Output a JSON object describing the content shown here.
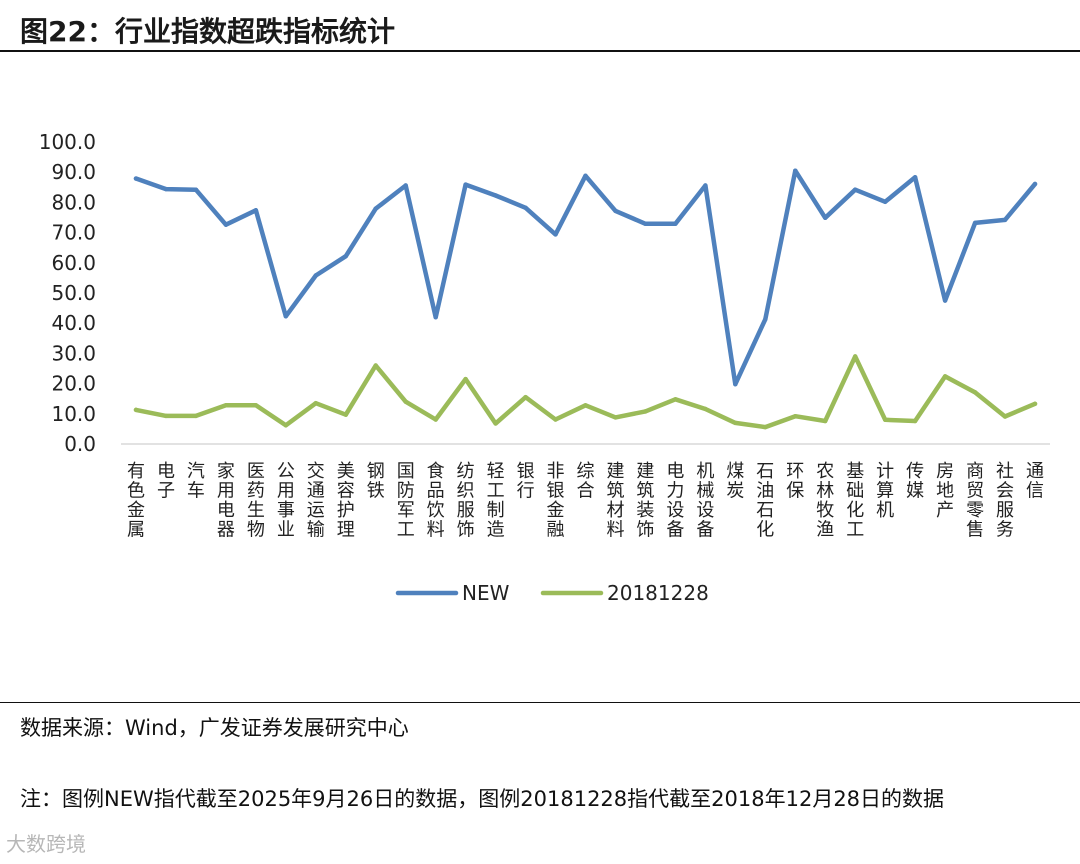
{
  "header": {
    "title": "图22：行业指数超跌指标统计"
  },
  "chart_data": {
    "type": "line",
    "title": "",
    "xlabel": "",
    "ylabel": "",
    "ylim": [
      0,
      100
    ],
    "yticks": [
      "100.0",
      "90.0",
      "80.0",
      "70.0",
      "60.0",
      "50.0",
      "40.0",
      "30.0",
      "20.0",
      "10.0",
      "0.0"
    ],
    "categories": [
      "有色金属",
      "电子",
      "汽车",
      "家用电器",
      "医药生物",
      "公用事业",
      "交通运输",
      "美容护理",
      "钢铁",
      "国防军工",
      "食品饮料",
      "纺织服饰",
      "轻工制造",
      "银行",
      "非银金融",
      "综合",
      "建筑材料",
      "建筑装饰",
      "电力设备",
      "机械设备",
      "煤炭",
      "石油石化",
      "环保",
      "农林牧渔",
      "基础化工",
      "计算机",
      "传媒",
      "房地产",
      "商贸零售",
      "社会服务",
      "通信"
    ],
    "series": [
      {
        "name": "NEW",
        "color": "#4f81bd",
        "values": [
          87.9,
          84.4,
          84.2,
          72.6,
          77.4,
          42.3,
          55.8,
          62.2,
          77.9,
          85.6,
          42.0,
          85.9,
          82.3,
          78.2,
          69.4,
          88.8,
          77.2,
          72.9,
          72.9,
          85.6,
          19.8,
          41.3,
          90.5,
          74.9,
          84.2,
          80.2,
          88.3,
          47.5,
          73.2,
          74.2,
          86.1
        ]
      },
      {
        "name": "20181228",
        "color": "#9bbb59",
        "values": [
          11.3,
          9.3,
          9.3,
          12.8,
          12.8,
          6.2,
          13.5,
          9.7,
          26.0,
          14.0,
          8.1,
          21.5,
          6.8,
          15.5,
          8.1,
          12.8,
          8.8,
          10.8,
          14.8,
          11.6,
          7.0,
          5.6,
          9.2,
          7.6,
          29.0,
          8.0,
          7.6,
          22.4,
          17.1,
          9.1,
          13.3
        ]
      }
    ],
    "legend": "bottom-center"
  },
  "footer": {
    "source": "数据来源：Wind，广发证券发展研究中心",
    "note": "注：图例NEW指代截至2025年9月26日的数据，图例20181228指代截至2018年12月28日的数据",
    "watermark": "大数跨境"
  }
}
